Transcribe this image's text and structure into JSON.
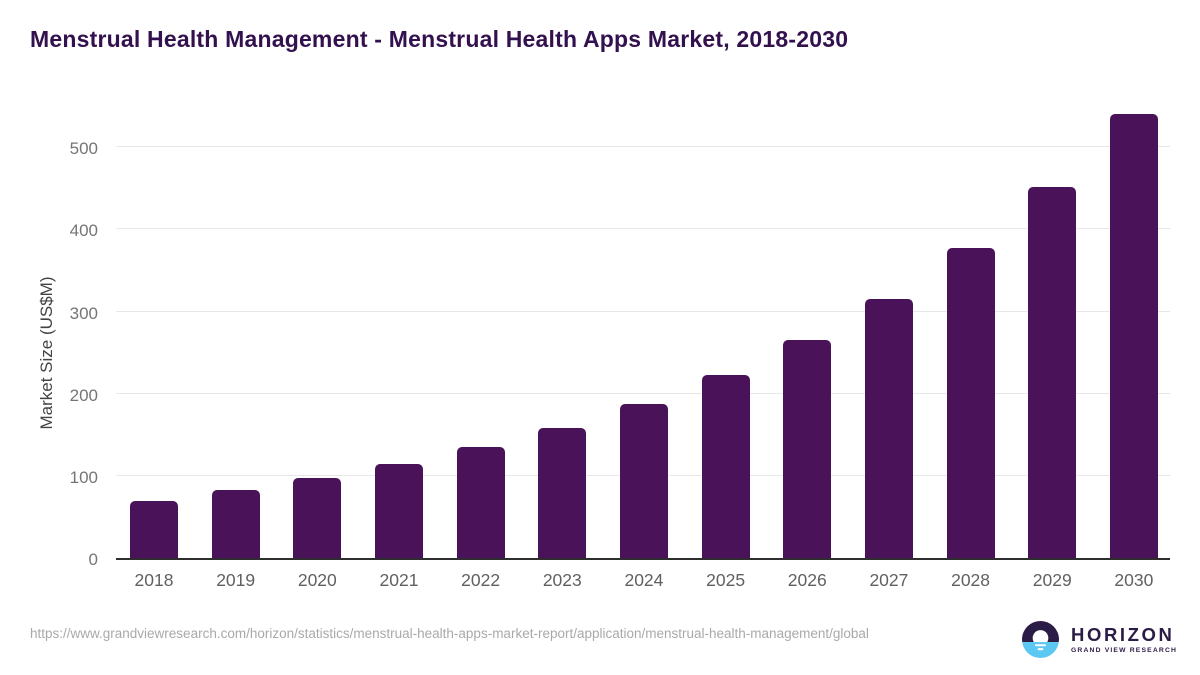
{
  "header": {
    "title": "Menstrual Health Management - Menstrual Health Apps Market, 2018-2030"
  },
  "chart_data": {
    "type": "bar",
    "categories": [
      "2018",
      "2019",
      "2020",
      "2021",
      "2022",
      "2023",
      "2024",
      "2025",
      "2026",
      "2027",
      "2028",
      "2029",
      "2030"
    ],
    "values": [
      70,
      83,
      97,
      114,
      135,
      158,
      188,
      223,
      265,
      315,
      377,
      451,
      541
    ],
    "title": "Menstrual Health Management - Menstrual Health Apps Market, 2018-2030",
    "xlabel": "",
    "ylabel": "Market Size (US$M)",
    "ylim": [
      0,
      555
    ],
    "yticks": [
      0,
      100,
      200,
      300,
      400,
      500
    ],
    "grid": true,
    "legend_position": "none",
    "bar_color": "#4a1259",
    "gridline_color": "#e7e7e7",
    "axis_line_color": "#2e2e2e",
    "tick_label_color": "#757575"
  },
  "footer": {
    "source_url": "https://www.grandviewresearch.com/horizon/statistics/menstrual-health-apps-market-report/application/menstrual-health-management/global",
    "logo": {
      "brand": "HORIZON",
      "subbrand": "GRAND VIEW RESEARCH",
      "icon_dark_color": "#2b1b47",
      "icon_blue_color": "#5ac8f0"
    }
  },
  "colors": {
    "title_color": "#33104e",
    "background": "#ffffff"
  }
}
